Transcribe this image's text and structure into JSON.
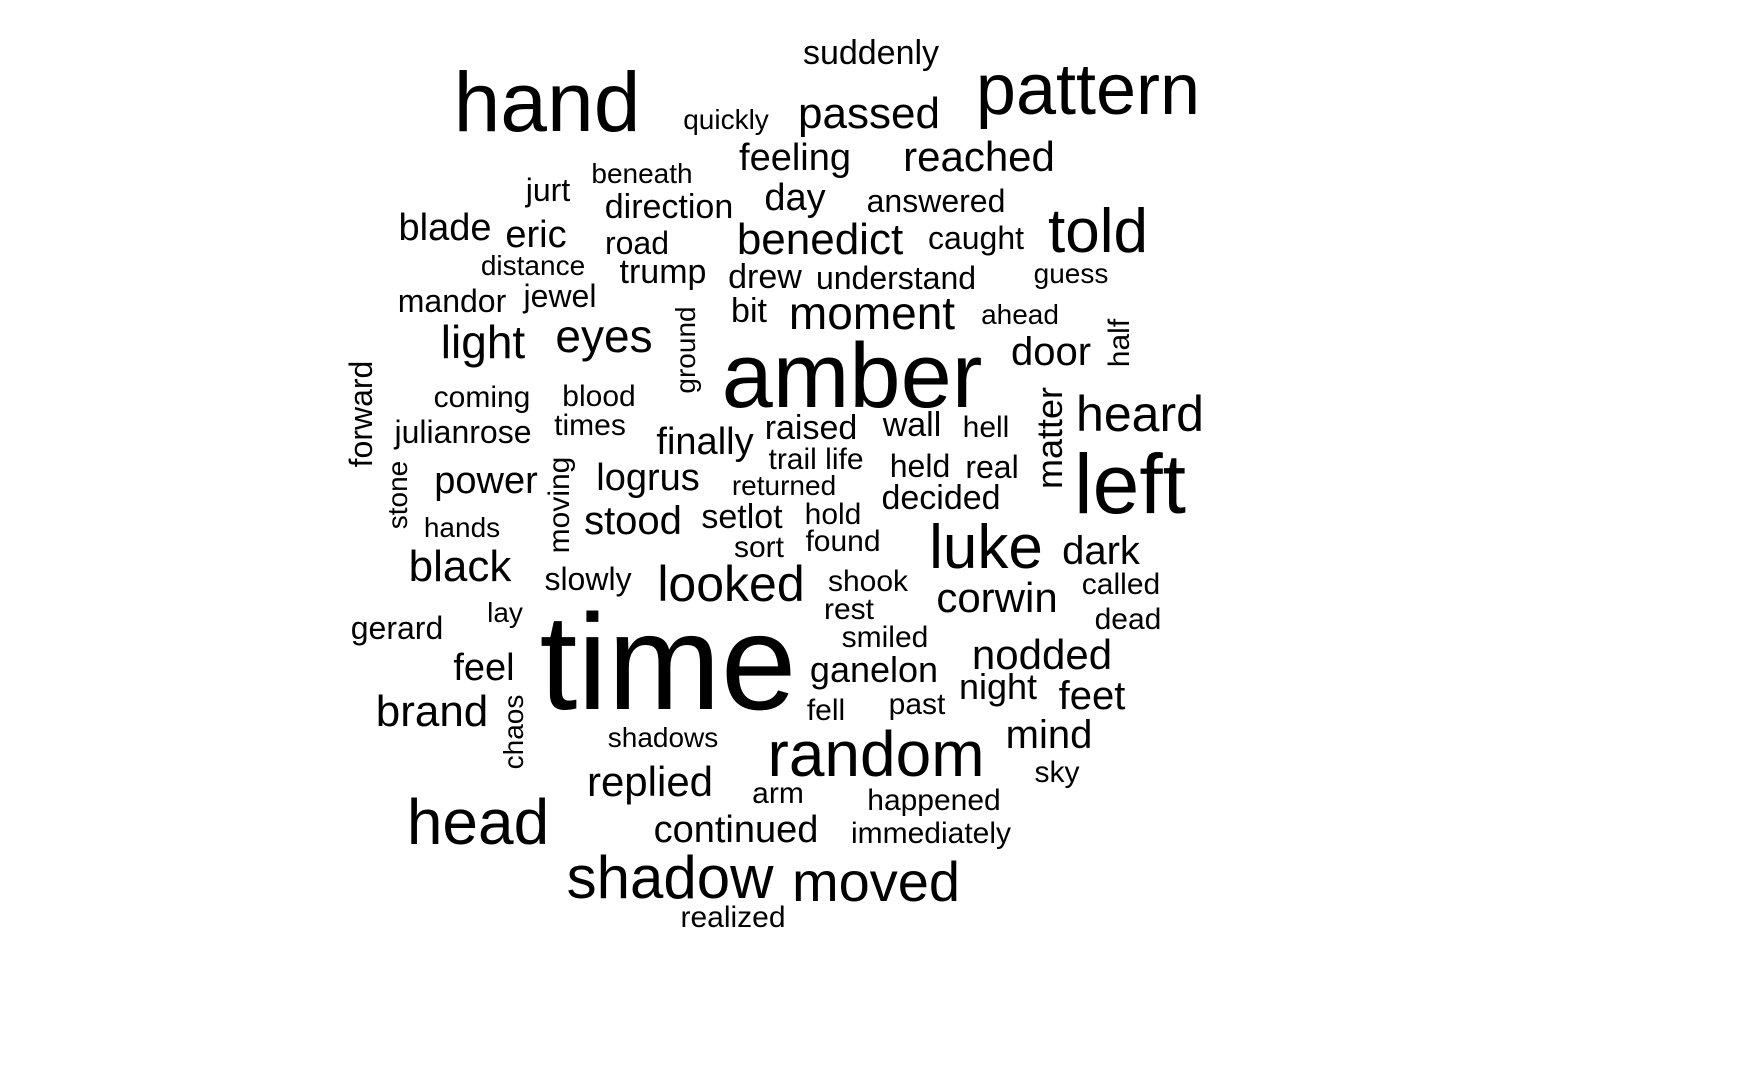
{
  "words": [
    {
      "text": "time",
      "weight": 1.0
    },
    {
      "text": "amber",
      "weight": 0.7
    },
    {
      "text": "hand",
      "weight": 0.6
    },
    {
      "text": "pattern",
      "weight": 0.55
    },
    {
      "text": "left",
      "weight": 0.6
    },
    {
      "text": "random",
      "weight": 0.45
    },
    {
      "text": "head",
      "weight": 0.47
    },
    {
      "text": "shadow",
      "weight": 0.44
    },
    {
      "text": "luke",
      "weight": 0.46
    },
    {
      "text": "told",
      "weight": 0.45
    },
    {
      "text": "moved",
      "weight": 0.42
    },
    {
      "text": "heard",
      "weight": 0.39
    },
    {
      "text": "looked",
      "weight": 0.38
    },
    {
      "text": "moment",
      "weight": 0.35
    },
    {
      "text": "eyes",
      "weight": 0.35
    },
    {
      "text": "benedict",
      "weight": 0.33
    },
    {
      "text": "light",
      "weight": 0.35
    },
    {
      "text": "black",
      "weight": 0.34
    },
    {
      "text": "passed",
      "weight": 0.33
    },
    {
      "text": "reached",
      "weight": 0.32
    },
    {
      "text": "corwin",
      "weight": 0.32
    },
    {
      "text": "replied",
      "weight": 0.32
    },
    {
      "text": "nodded",
      "weight": 0.32
    },
    {
      "text": "brand",
      "weight": 0.33
    },
    {
      "text": "stood",
      "weight": 0.31
    },
    {
      "text": "mind",
      "weight": 0.3
    },
    {
      "text": "door",
      "weight": 0.3
    },
    {
      "text": "dark",
      "weight": 0.3
    },
    {
      "text": "feet",
      "weight": 0.3
    },
    {
      "text": "feeling",
      "weight": 0.29
    },
    {
      "text": "day",
      "weight": 0.29
    },
    {
      "text": "finally",
      "weight": 0.28
    },
    {
      "text": "continued",
      "weight": 0.28
    },
    {
      "text": "logrus",
      "weight": 0.28
    },
    {
      "text": "power",
      "weight": 0.28
    },
    {
      "text": "blade",
      "weight": 0.28
    },
    {
      "text": "eric",
      "weight": 0.28
    },
    {
      "text": "ganelon",
      "weight": 0.27
    },
    {
      "text": "night",
      "weight": 0.27
    },
    {
      "text": "feel",
      "weight": 0.28
    },
    {
      "text": "decided",
      "weight": 0.26
    },
    {
      "text": "suddenly",
      "weight": 0.26
    },
    {
      "text": "direction",
      "weight": 0.26
    },
    {
      "text": "trump",
      "weight": 0.26
    },
    {
      "text": "raised",
      "weight": 0.26
    },
    {
      "text": "wall",
      "weight": 0.26
    },
    {
      "text": "setlot",
      "weight": 0.26
    },
    {
      "text": "drew",
      "weight": 0.26
    },
    {
      "text": "bit",
      "weight": 0.26
    },
    {
      "text": "slowly",
      "weight": 0.25
    },
    {
      "text": "answered",
      "weight": 0.24
    },
    {
      "text": "understand",
      "weight": 0.24
    },
    {
      "text": "caught",
      "weight": 0.24
    },
    {
      "text": "held",
      "weight": 0.24
    },
    {
      "text": "real",
      "weight": 0.24
    },
    {
      "text": "road",
      "weight": 0.24
    },
    {
      "text": "jewel",
      "weight": 0.25
    },
    {
      "text": "mandor",
      "weight": 0.24
    },
    {
      "text": "jurt",
      "weight": 0.25
    },
    {
      "text": "gerard",
      "weight": 0.24
    },
    {
      "text": "julianrose",
      "weight": 0.24
    },
    {
      "text": "coming",
      "weight": 0.23
    },
    {
      "text": "blood",
      "weight": 0.23
    },
    {
      "text": "times",
      "weight": 0.23
    },
    {
      "text": "hell",
      "weight": 0.23
    },
    {
      "text": "trail life",
      "weight": 0.23
    },
    {
      "text": "hold",
      "weight": 0.23
    },
    {
      "text": "found",
      "weight": 0.23
    },
    {
      "text": "sort",
      "weight": 0.24
    },
    {
      "text": "shook",
      "weight": 0.23
    },
    {
      "text": "called",
      "weight": 0.23
    },
    {
      "text": "dead",
      "weight": 0.23
    },
    {
      "text": "smiled",
      "weight": 0.23
    },
    {
      "text": "rest",
      "weight": 0.23
    },
    {
      "text": "fell",
      "weight": 0.23
    },
    {
      "text": "past",
      "weight": 0.23
    },
    {
      "text": "sky",
      "weight": 0.23
    },
    {
      "text": "arm",
      "weight": 0.24
    },
    {
      "text": "happened",
      "weight": 0.23
    },
    {
      "text": "immediately",
      "weight": 0.23
    },
    {
      "text": "shadows",
      "weight": 0.22
    },
    {
      "text": "realized",
      "weight": 0.23
    },
    {
      "text": "beneath",
      "weight": 0.22
    },
    {
      "text": "quickly",
      "weight": 0.22
    },
    {
      "text": "distance",
      "weight": 0.22
    },
    {
      "text": "guess",
      "weight": 0.22
    },
    {
      "text": "ahead",
      "weight": 0.22
    },
    {
      "text": "returned",
      "weight": 0.22
    },
    {
      "text": "hands",
      "weight": 0.22
    },
    {
      "text": "lay",
      "weight": 0.22
    },
    {
      "text": "forward",
      "weight": 0.25
    },
    {
      "text": "ground",
      "weight": 0.23
    },
    {
      "text": "half",
      "weight": 0.23
    },
    {
      "text": "matter",
      "weight": 0.28
    },
    {
      "text": "stone",
      "weight": 0.22
    },
    {
      "text": "moving",
      "weight": 0.23
    },
    {
      "text": "chaos",
      "weight": 0.22
    }
  ]
}
